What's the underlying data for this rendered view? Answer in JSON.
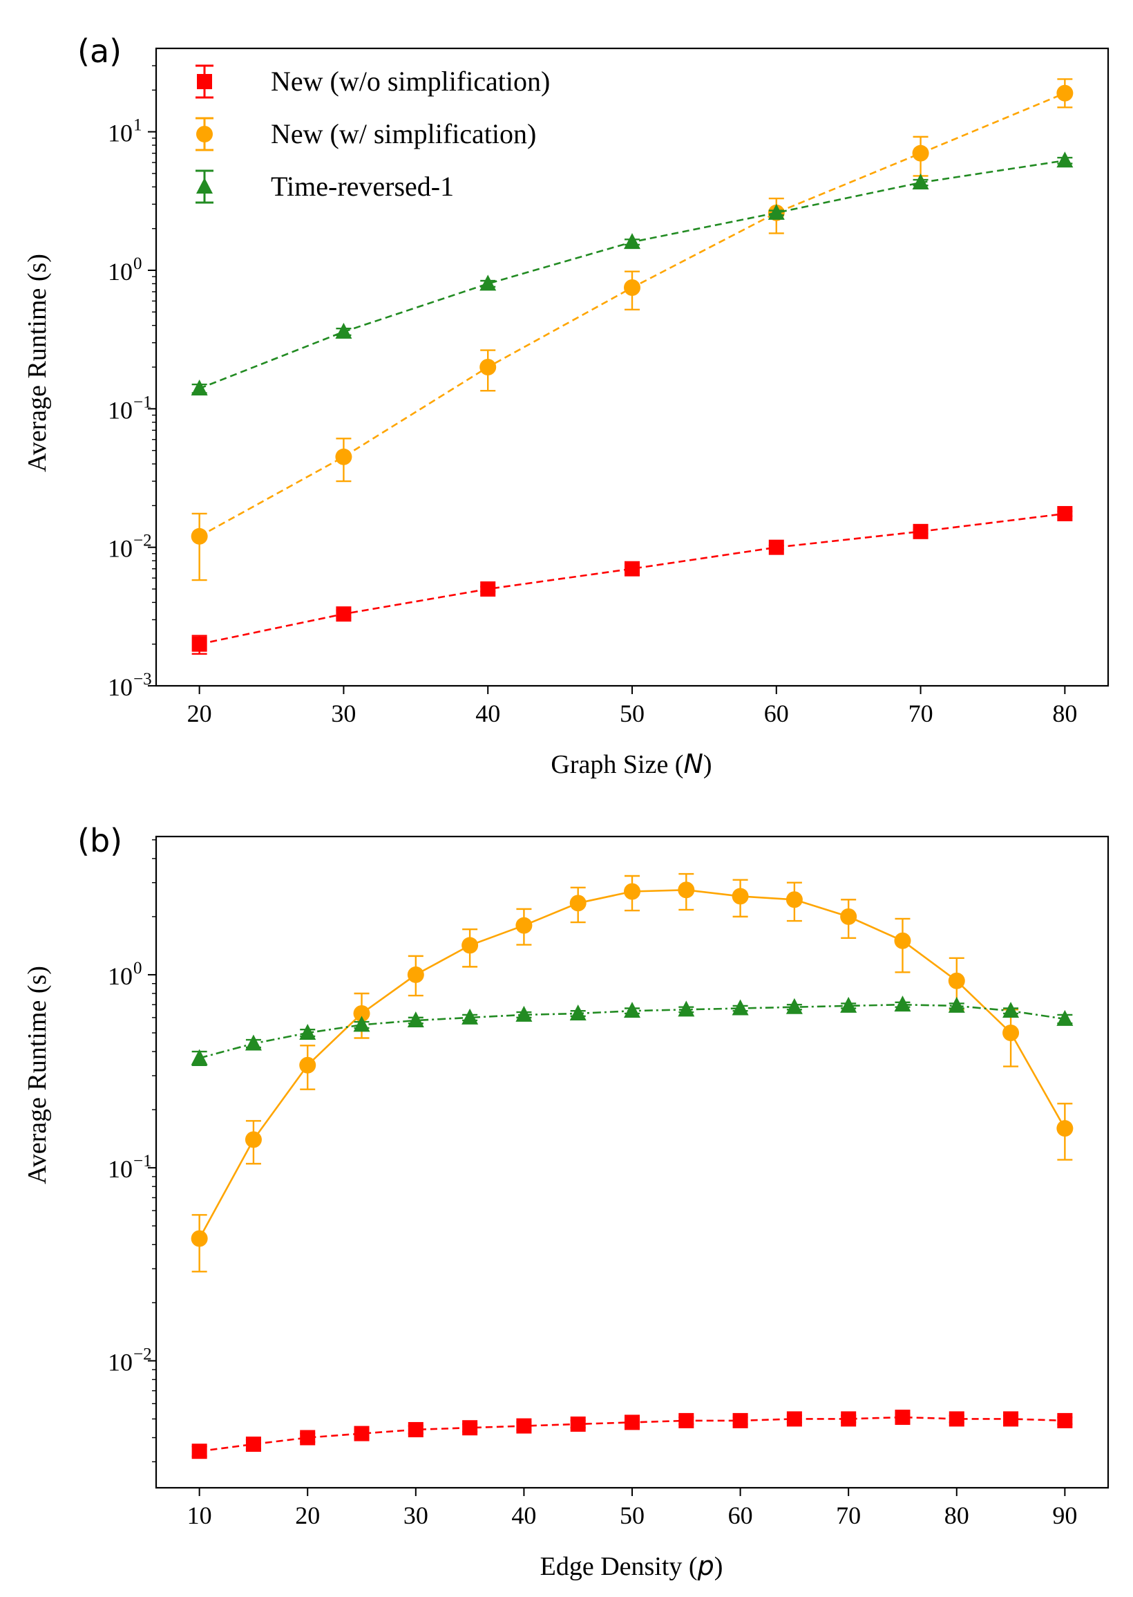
{
  "chart_data": [
    {
      "panel_label": "(a)",
      "type": "line",
      "xlabel": "Graph Size (",
      "xlabel_var": "N",
      "xlabel_suffix": ")",
      "ylabel": "Average Runtime (s)",
      "y_scale": "log",
      "xlim": [
        17,
        83
      ],
      "ylim": [
        0.001,
        40
      ],
      "x_ticks": [
        20,
        30,
        40,
        50,
        60,
        70,
        80
      ],
      "y_ticks": [
        {
          "value": 0.001,
          "base": "10",
          "exp": "−3"
        },
        {
          "value": 0.01,
          "base": "10",
          "exp": "−2"
        },
        {
          "value": 0.1,
          "base": "10",
          "exp": "−1"
        },
        {
          "value": 1,
          "base": "10",
          "exp": "0"
        },
        {
          "value": 10,
          "base": "10",
          "exp": "1"
        }
      ],
      "legend_position": "top-left",
      "x": [
        20,
        30,
        40,
        50,
        60,
        70,
        80
      ],
      "series": [
        {
          "name": "New (w/o simplification)",
          "color": "#ff0000",
          "marker": "square",
          "line": "dashed",
          "values": [
            0.002,
            0.0033,
            0.005,
            0.007,
            0.01,
            0.013,
            0.0175
          ],
          "err_low": [
            0.0017,
            0.0031,
            0.0048,
            0.0068,
            0.0097,
            0.0126,
            0.0168
          ],
          "err_high": [
            0.0023,
            0.0035,
            0.0052,
            0.0072,
            0.0103,
            0.0134,
            0.0182
          ]
        },
        {
          "name": "New (w/ simplification)",
          "color": "#ffa500",
          "marker": "circle",
          "line": "dashed",
          "values": [
            0.012,
            0.045,
            0.2,
            0.75,
            2.6,
            7.0,
            19.0
          ],
          "err_low": [
            0.0058,
            0.03,
            0.135,
            0.52,
            1.85,
            4.8,
            15.0
          ],
          "err_high": [
            0.0175,
            0.061,
            0.265,
            0.98,
            3.3,
            9.2,
            24.0
          ]
        },
        {
          "name": "Time-reversed-1",
          "color": "#228b22",
          "marker": "triangle",
          "line": "dashed",
          "values": [
            0.14,
            0.36,
            0.8,
            1.6,
            2.6,
            4.3,
            6.2
          ],
          "err_low": [
            0.13,
            0.34,
            0.76,
            1.53,
            2.5,
            4.1,
            5.9
          ],
          "err_high": [
            0.15,
            0.38,
            0.84,
            1.67,
            2.7,
            4.5,
            6.5
          ]
        }
      ]
    },
    {
      "panel_label": "(b)",
      "type": "line",
      "xlabel": "Edge Density (",
      "xlabel_var": "p",
      "xlabel_suffix": ")",
      "ylabel": "Average Runtime (s)",
      "y_scale": "log",
      "xlim": [
        6,
        94
      ],
      "ylim": [
        0.0022,
        5.2
      ],
      "x_ticks": [
        10,
        20,
        30,
        40,
        50,
        60,
        70,
        80,
        90
      ],
      "y_ticks": [
        {
          "value": 0.01,
          "base": "10",
          "exp": "−2"
        },
        {
          "value": 0.1,
          "base": "10",
          "exp": "−1"
        },
        {
          "value": 1,
          "base": "10",
          "exp": "0"
        }
      ],
      "x": [
        10,
        15,
        20,
        25,
        30,
        35,
        40,
        45,
        50,
        55,
        60,
        65,
        70,
        75,
        80,
        85,
        90
      ],
      "series": [
        {
          "color": "#ff0000",
          "marker": "square",
          "line": "dashed",
          "values": [
            0.0034,
            0.0037,
            0.004,
            0.0042,
            0.0044,
            0.0045,
            0.0046,
            0.0047,
            0.0048,
            0.0049,
            0.0049,
            0.005,
            0.005,
            0.0051,
            0.005,
            0.005,
            0.0049
          ],
          "err_low": [
            0.0032,
            0.0035,
            0.0038,
            0.004,
            0.0042,
            0.0043,
            0.0044,
            0.0045,
            0.0046,
            0.0047,
            0.0047,
            0.0048,
            0.0048,
            0.0049,
            0.0048,
            0.0048,
            0.0047
          ],
          "err_high": [
            0.0036,
            0.0039,
            0.0042,
            0.0044,
            0.0046,
            0.0047,
            0.0048,
            0.0049,
            0.005,
            0.0051,
            0.0051,
            0.0052,
            0.0052,
            0.0053,
            0.0052,
            0.0052,
            0.0051
          ]
        },
        {
          "color": "#ffa500",
          "marker": "circle",
          "line": "solid",
          "values": [
            0.043,
            0.14,
            0.34,
            0.63,
            1.0,
            1.42,
            1.8,
            2.35,
            2.7,
            2.75,
            2.55,
            2.45,
            2.0,
            1.5,
            0.93,
            0.5,
            0.16
          ],
          "err_low": [
            0.029,
            0.105,
            0.255,
            0.47,
            0.78,
            1.1,
            1.43,
            1.87,
            2.15,
            2.17,
            2.0,
            1.9,
            1.55,
            1.03,
            0.66,
            0.335,
            0.11
          ],
          "err_high": [
            0.057,
            0.175,
            0.43,
            0.8,
            1.25,
            1.72,
            2.19,
            2.83,
            3.25,
            3.33,
            3.1,
            3.0,
            2.45,
            1.95,
            1.22,
            0.66,
            0.215
          ]
        },
        {
          "color": "#228b22",
          "marker": "triangle",
          "line": "dashdot",
          "values": [
            0.37,
            0.44,
            0.5,
            0.55,
            0.58,
            0.6,
            0.62,
            0.63,
            0.65,
            0.66,
            0.67,
            0.68,
            0.69,
            0.7,
            0.69,
            0.65,
            0.59
          ],
          "err_low": [
            0.34,
            0.42,
            0.48,
            0.53,
            0.56,
            0.58,
            0.6,
            0.61,
            0.63,
            0.64,
            0.65,
            0.66,
            0.67,
            0.68,
            0.67,
            0.63,
            0.56
          ],
          "err_high": [
            0.4,
            0.46,
            0.52,
            0.57,
            0.6,
            0.62,
            0.64,
            0.65,
            0.67,
            0.68,
            0.69,
            0.7,
            0.71,
            0.72,
            0.71,
            0.67,
            0.62
          ]
        }
      ]
    }
  ]
}
